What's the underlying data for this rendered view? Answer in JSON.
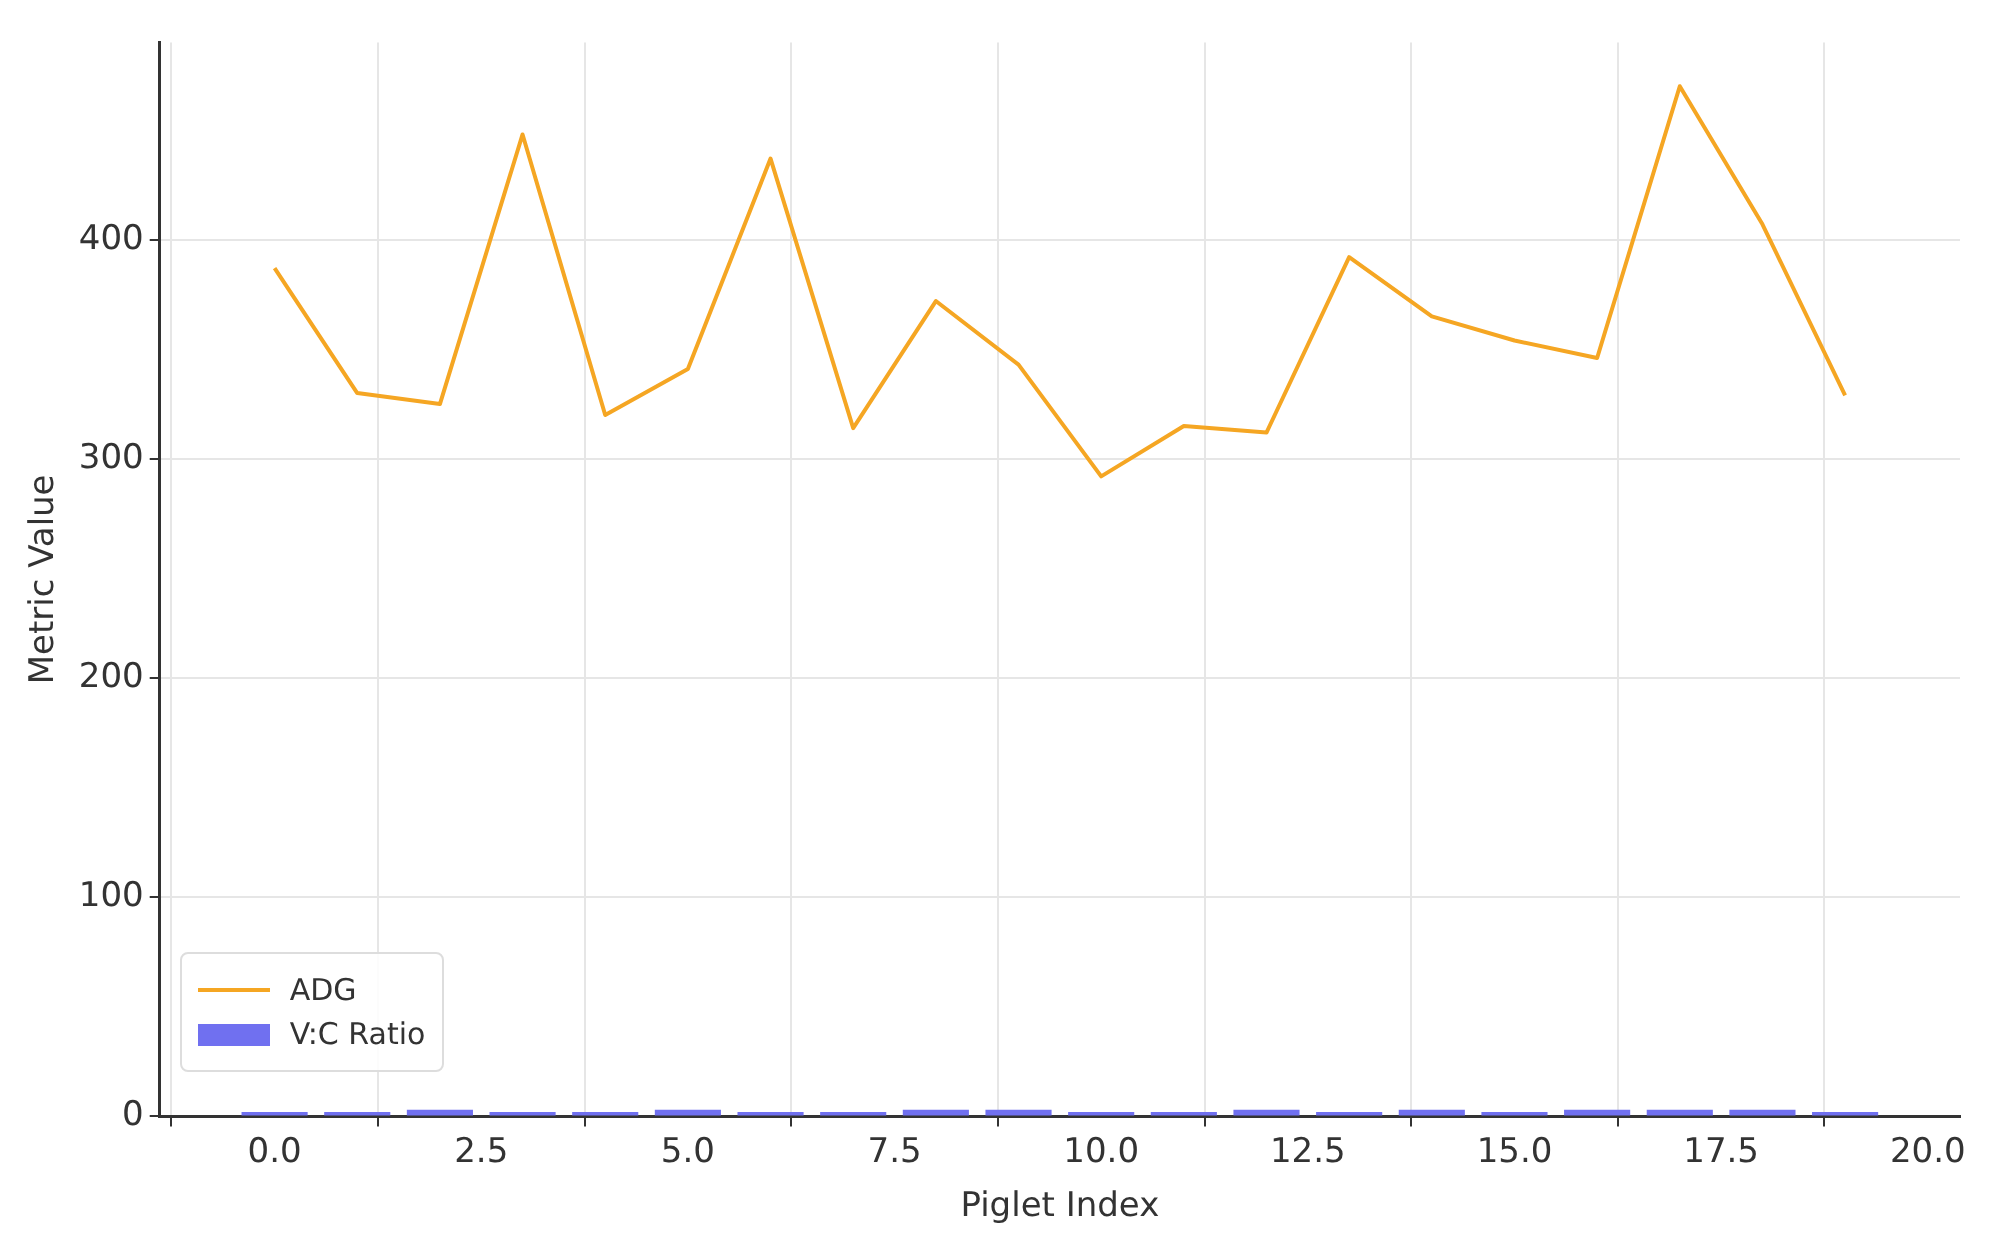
{
  "chart_data": {
    "type": "line",
    "xlabel": "Piglet Index",
    "ylabel": "Metric Value",
    "x": [
      0,
      1,
      2,
      3,
      4,
      5,
      6,
      7,
      8,
      9,
      10,
      11,
      12,
      13,
      14,
      15,
      16,
      17,
      18,
      19
    ],
    "series": [
      {
        "name": "ADG",
        "color": "#f5a623",
        "values": [
          387,
          330,
          325,
          448,
          320,
          341,
          437,
          314,
          372,
          343,
          292,
          315,
          312,
          392,
          365,
          354,
          346,
          470,
          407,
          329
        ]
      },
      {
        "name": "V:C Ratio",
        "type": "bar",
        "color": "#7070f0",
        "values": [
          2,
          2,
          3,
          2,
          2,
          3,
          2,
          2,
          3,
          3,
          2,
          2,
          3,
          2,
          3,
          2,
          3,
          3,
          3,
          2
        ]
      }
    ],
    "xlim": [
      -1.39,
      20.39
    ],
    "ylim": [
      0,
      490
    ],
    "xticks": [
      {
        "value": 0,
        "label": "0.0"
      },
      {
        "value": 2.5,
        "label": "2.5"
      },
      {
        "value": 5,
        "label": "5.0"
      },
      {
        "value": 7.5,
        "label": "7.5"
      },
      {
        "value": 10,
        "label": "10.0"
      },
      {
        "value": 12.5,
        "label": "12.5"
      },
      {
        "value": 15,
        "label": "15.0"
      },
      {
        "value": 17.5,
        "label": "17.5"
      },
      {
        "value": 20,
        "label": "20.0"
      }
    ],
    "yticks": [
      0,
      100,
      200,
      300,
      400
    ],
    "grid": true,
    "legend": "bottom left",
    "marker": "none",
    "line_style": "solid"
  }
}
